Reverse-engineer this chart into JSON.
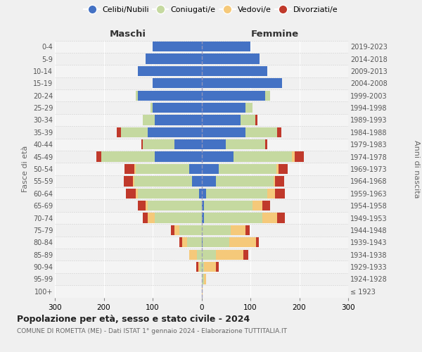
{
  "age_groups": [
    "100+",
    "95-99",
    "90-94",
    "85-89",
    "80-84",
    "75-79",
    "70-74",
    "65-69",
    "60-64",
    "55-59",
    "50-54",
    "45-49",
    "40-44",
    "35-39",
    "30-34",
    "25-29",
    "20-24",
    "15-19",
    "10-14",
    "5-9",
    "0-4"
  ],
  "birth_years": [
    "≤ 1923",
    "1924-1928",
    "1929-1933",
    "1934-1938",
    "1939-1943",
    "1944-1948",
    "1949-1953",
    "1954-1958",
    "1959-1963",
    "1964-1968",
    "1969-1973",
    "1974-1978",
    "1979-1983",
    "1984-1988",
    "1989-1993",
    "1994-1998",
    "1999-2003",
    "2004-2008",
    "2009-2013",
    "2014-2018",
    "2019-2023"
  ],
  "maschi_celibe": [
    0,
    0,
    0,
    0,
    0,
    0,
    0,
    0,
    5,
    20,
    25,
    95,
    55,
    110,
    95,
    100,
    130,
    100,
    130,
    115,
    100
  ],
  "maschi_coniugato": [
    0,
    0,
    3,
    10,
    30,
    45,
    95,
    110,
    125,
    118,
    110,
    110,
    65,
    55,
    25,
    5,
    5,
    0,
    0,
    0,
    0
  ],
  "maschi_vedovo": [
    0,
    0,
    3,
    15,
    10,
    10,
    15,
    5,
    5,
    3,
    3,
    0,
    0,
    0,
    0,
    0,
    0,
    0,
    0,
    0,
    0
  ],
  "maschi_divorziato": [
    0,
    0,
    5,
    0,
    5,
    8,
    10,
    15,
    20,
    18,
    20,
    10,
    3,
    8,
    0,
    0,
    0,
    0,
    0,
    0,
    0
  ],
  "femmine_celibe": [
    0,
    0,
    0,
    0,
    2,
    0,
    5,
    5,
    10,
    30,
    35,
    65,
    50,
    90,
    80,
    90,
    130,
    165,
    135,
    118,
    100
  ],
  "femmine_coniugato": [
    0,
    5,
    5,
    30,
    55,
    60,
    120,
    100,
    125,
    118,
    118,
    120,
    80,
    65,
    30,
    15,
    10,
    0,
    0,
    0,
    0
  ],
  "femmine_vedovo": [
    2,
    5,
    25,
    55,
    55,
    30,
    30,
    20,
    15,
    3,
    5,
    5,
    0,
    0,
    0,
    0,
    0,
    0,
    0,
    0,
    0
  ],
  "femmine_divorziato": [
    0,
    0,
    5,
    10,
    5,
    8,
    15,
    15,
    20,
    18,
    18,
    20,
    5,
    8,
    5,
    0,
    0,
    0,
    0,
    0,
    0
  ],
  "colors": {
    "celibe": "#4472c4",
    "coniugato": "#c5d9a0",
    "vedovo": "#f5c97a",
    "divorziato": "#c0392b"
  },
  "title": "Popolazione per età, sesso e stato civile - 2024",
  "subtitle": "COMUNE DI ROMETTA (ME) - Dati ISTAT 1° gennaio 2024 - Elaborazione TUTTITALIA.IT",
  "xlabel_left": "Maschi",
  "xlabel_right": "Femmine",
  "ylabel_left": "Fasce di età",
  "ylabel_right": "Anni di nascita",
  "xlim": 300,
  "bg_color": "#f0f0f0"
}
